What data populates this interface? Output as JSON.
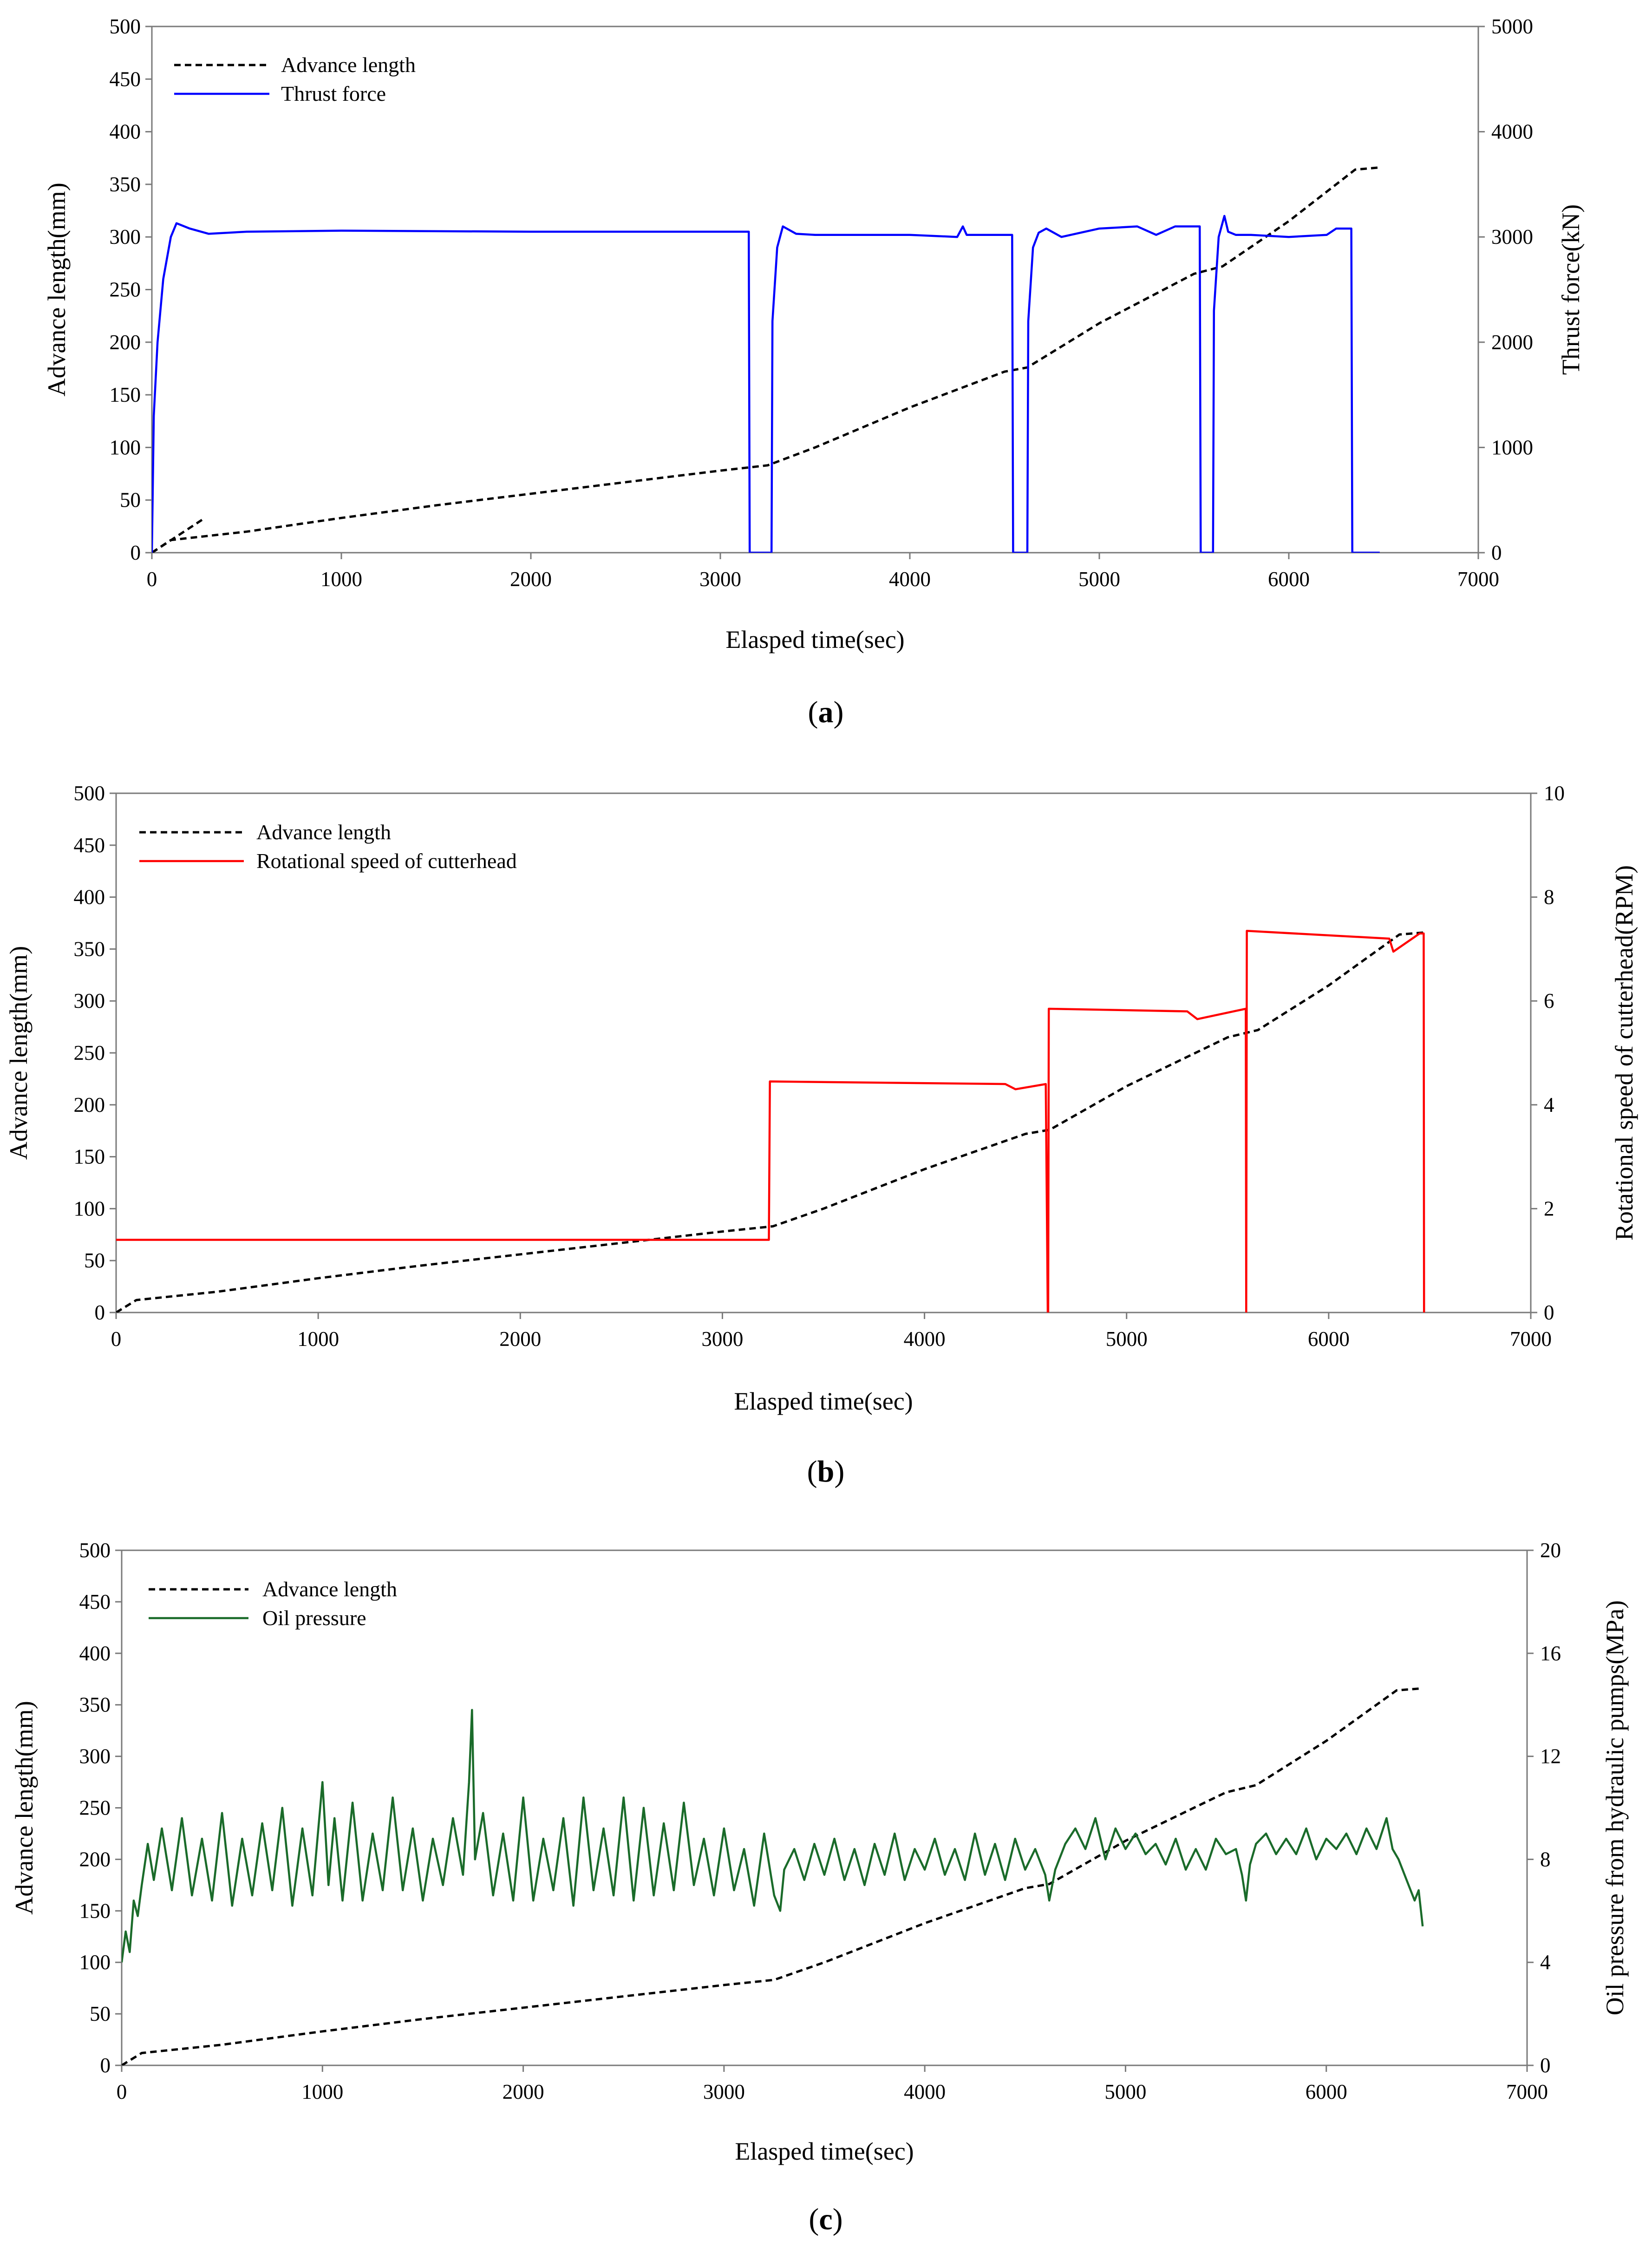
{
  "chart_data": [
    {
      "type": "line",
      "caption_letter": "a",
      "xlabel": "Elasped time(sec)",
      "ylabel_left": "Advance length(mm)",
      "ylabel_right": "Thrust force(kN)",
      "xlim": [
        0,
        7000
      ],
      "ylim_left": [
        0,
        500
      ],
      "ylim_right": [
        0,
        5000
      ],
      "xticks": [
        "0",
        "1000",
        "2000",
        "3000",
        "4000",
        "5000",
        "6000",
        "7000"
      ],
      "yticks_left": [
        "0",
        "50",
        "100",
        "150",
        "200",
        "250",
        "300",
        "350",
        "400",
        "450",
        "500"
      ],
      "yticks_right": [
        "0",
        "1000",
        "2000",
        "3000",
        "4000",
        "5000"
      ],
      "series": [
        {
          "name": "Advance length",
          "axis": "left",
          "color": "#000000",
          "dashed": true,
          "x": [
            0,
            100,
            300,
            500,
            1000,
            1500,
            2000,
            2500,
            3000,
            3250,
            3500,
            4000,
            4500,
            4620,
            5000,
            5500,
            5650,
            6000,
            6350,
            6480
          ],
          "y": [
            0,
            12,
            16,
            20,
            33,
            45,
            56,
            67,
            78,
            83,
            100,
            138,
            172,
            176,
            218,
            265,
            272,
            315,
            364,
            366
          ]
        },
        {
          "name": "Advance length (segment)",
          "axis": "left",
          "color": "#000000",
          "dashed": true,
          "legend": false,
          "x": [
            0,
            280
          ],
          "y": [
            0,
            33
          ]
        },
        {
          "name": "Thrust force",
          "axis": "right",
          "color": "#0000ff",
          "dashed": false,
          "x": [
            0,
            10,
            30,
            60,
            100,
            130,
            200,
            300,
            500,
            1000,
            2000,
            3000,
            3150,
            3155,
            3160,
            3270,
            3275,
            3300,
            3330,
            3350,
            3400,
            3500,
            4000,
            4250,
            4280,
            4300,
            4500,
            4540,
            4545,
            4620,
            4625,
            4650,
            4680,
            4720,
            4800,
            5000,
            5200,
            5300,
            5400,
            5500,
            5530,
            5535,
            5600,
            5605,
            5630,
            5660,
            5680,
            5720,
            5800,
            6000,
            6200,
            6250,
            6300,
            6330,
            6335,
            6480
          ],
          "y": [
            0,
            1300,
            2000,
            2600,
            3000,
            3130,
            3080,
            3030,
            3050,
            3060,
            3050,
            3050,
            3050,
            0,
            0,
            0,
            2200,
            2900,
            3100,
            3080,
            3030,
            3020,
            3020,
            3000,
            3100,
            3020,
            3020,
            3020,
            0,
            0,
            2200,
            2900,
            3040,
            3080,
            3000,
            3080,
            3100,
            3020,
            3100,
            3100,
            3100,
            0,
            0,
            2300,
            3000,
            3200,
            3050,
            3020,
            3020,
            3000,
            3020,
            3080,
            3080,
            3080,
            0,
            0
          ]
        }
      ]
    },
    {
      "type": "line",
      "caption_letter": "b",
      "xlabel": "Elasped time(sec)",
      "ylabel_left": "Advance length(mm)",
      "ylabel_right": "Rotational speed of cutterhead(RPM)",
      "xlim": [
        0,
        7000
      ],
      "ylim_left": [
        0,
        500
      ],
      "ylim_right": [
        0,
        10
      ],
      "xticks": [
        "0",
        "1000",
        "2000",
        "3000",
        "4000",
        "5000",
        "6000",
        "7000"
      ],
      "yticks_left": [
        "0",
        "50",
        "100",
        "150",
        "200",
        "250",
        "300",
        "350",
        "400",
        "450",
        "500"
      ],
      "yticks_right": [
        "0",
        "2",
        "4",
        "6",
        "8",
        "10"
      ],
      "series": [
        {
          "name": "Advance length",
          "axis": "left",
          "color": "#000000",
          "dashed": true,
          "x": [
            0,
            100,
            300,
            500,
            1000,
            1500,
            2000,
            2500,
            3000,
            3250,
            3500,
            4000,
            4500,
            4620,
            5000,
            5500,
            5650,
            6000,
            6350,
            6480
          ],
          "y": [
            0,
            12,
            16,
            20,
            33,
            45,
            56,
            67,
            78,
            83,
            100,
            138,
            172,
            176,
            218,
            265,
            272,
            315,
            364,
            366
          ]
        },
        {
          "name": "Rotational speed of cutterhead",
          "axis": "right",
          "color": "#ff0000",
          "dashed": false,
          "x": [
            0,
            3230,
            3235,
            4400,
            4450,
            4600,
            4610,
            4612,
            4615,
            5300,
            5350,
            5590,
            5592,
            5595,
            6300,
            6320,
            6450,
            6470,
            6472
          ],
          "y": [
            1.4,
            1.4,
            4.45,
            4.4,
            4.3,
            4.4,
            0,
            0,
            5.85,
            5.8,
            5.65,
            5.85,
            0,
            7.35,
            7.2,
            6.95,
            7.3,
            7.3,
            0
          ]
        }
      ]
    },
    {
      "type": "line",
      "caption_letter": "c",
      "xlabel": "Elasped time(sec)",
      "ylabel_left": "Advance length(mm)",
      "ylabel_right": "Oil pressure from hydraulic pumps(MPa)",
      "xlim": [
        0,
        7000
      ],
      "ylim_left": [
        0,
        500
      ],
      "ylim_right": [
        0,
        20
      ],
      "xticks": [
        "0",
        "1000",
        "2000",
        "3000",
        "4000",
        "5000",
        "6000",
        "7000"
      ],
      "yticks_left": [
        "0",
        "50",
        "100",
        "150",
        "200",
        "250",
        "300",
        "350",
        "400",
        "450",
        "500"
      ],
      "yticks_right": [
        "0",
        "4",
        "8",
        "12",
        "16",
        "20"
      ],
      "series": [
        {
          "name": "Advance length",
          "axis": "left",
          "color": "#000000",
          "dashed": true,
          "x": [
            0,
            100,
            300,
            500,
            1000,
            1500,
            2000,
            2500,
            3000,
            3250,
            3500,
            4000,
            4500,
            4620,
            5000,
            5500,
            5650,
            6000,
            6350,
            6480
          ],
          "y": [
            0,
            12,
            16,
            20,
            33,
            45,
            56,
            67,
            78,
            83,
            100,
            138,
            172,
            176,
            218,
            265,
            272,
            315,
            364,
            366
          ]
        },
        {
          "name": "Oil pressure",
          "axis": "right",
          "color": "#1a6b2a",
          "dashed": false,
          "x": [
            0,
            20,
            40,
            60,
            80,
            100,
            130,
            160,
            200,
            250,
            300,
            350,
            400,
            450,
            500,
            550,
            600,
            650,
            700,
            750,
            800,
            850,
            900,
            950,
            1000,
            1030,
            1060,
            1100,
            1150,
            1200,
            1250,
            1300,
            1350,
            1400,
            1450,
            1500,
            1550,
            1600,
            1650,
            1700,
            1730,
            1745,
            1760,
            1800,
            1850,
            1900,
            1950,
            2000,
            2050,
            2100,
            2150,
            2200,
            2250,
            2300,
            2350,
            2400,
            2450,
            2500,
            2550,
            2600,
            2650,
            2700,
            2750,
            2800,
            2850,
            2900,
            2950,
            3000,
            3050,
            3100,
            3150,
            3200,
            3250,
            3280,
            3300,
            3350,
            3400,
            3450,
            3500,
            3550,
            3600,
            3650,
            3700,
            3750,
            3800,
            3850,
            3900,
            3950,
            4000,
            4050,
            4100,
            4150,
            4200,
            4250,
            4300,
            4350,
            4400,
            4450,
            4500,
            4550,
            4600,
            4620,
            4650,
            4700,
            4750,
            4800,
            4850,
            4900,
            4950,
            5000,
            5050,
            5100,
            5150,
            5200,
            5250,
            5300,
            5350,
            5400,
            5450,
            5500,
            5550,
            5580,
            5600,
            5620,
            5650,
            5700,
            5750,
            5800,
            5850,
            5900,
            5950,
            6000,
            6050,
            6100,
            6150,
            6200,
            6250,
            6300,
            6330,
            6360,
            6400,
            6440,
            6460,
            6480
          ],
          "y": [
            4.0,
            5.2,
            4.4,
            6.4,
            5.8,
            7.0,
            8.6,
            7.2,
            9.2,
            6.8,
            9.6,
            6.6,
            8.8,
            6.4,
            9.8,
            6.2,
            8.8,
            6.6,
            9.4,
            6.8,
            10.0,
            6.2,
            9.2,
            6.6,
            11.0,
            7.0,
            9.6,
            6.4,
            10.2,
            6.4,
            9.0,
            6.8,
            10.4,
            6.8,
            9.2,
            6.4,
            8.8,
            7.0,
            9.6,
            7.4,
            11.0,
            13.8,
            8.0,
            9.8,
            6.6,
            9.0,
            6.4,
            10.4,
            6.4,
            8.8,
            6.8,
            9.6,
            6.2,
            10.4,
            6.8,
            9.2,
            6.6,
            10.4,
            6.4,
            10.0,
            6.6,
            9.4,
            6.8,
            10.2,
            7.0,
            8.8,
            6.6,
            9.2,
            6.8,
            8.4,
            6.2,
            9.0,
            6.6,
            6.0,
            7.6,
            8.4,
            7.2,
            8.6,
            7.4,
            8.8,
            7.2,
            8.4,
            7.0,
            8.6,
            7.4,
            9.0,
            7.2,
            8.4,
            7.6,
            8.8,
            7.4,
            8.4,
            7.2,
            9.0,
            7.4,
            8.6,
            7.2,
            8.8,
            7.6,
            8.4,
            7.4,
            6.4,
            7.6,
            8.6,
            9.2,
            8.4,
            9.6,
            8.0,
            9.2,
            8.4,
            9.0,
            8.2,
            8.6,
            7.8,
            8.8,
            7.6,
            8.4,
            7.6,
            8.8,
            8.2,
            8.4,
            7.4,
            6.4,
            7.8,
            8.6,
            9.0,
            8.2,
            8.8,
            8.2,
            9.2,
            8.0,
            8.8,
            8.4,
            9.0,
            8.2,
            9.2,
            8.4,
            9.6,
            8.4,
            8.0,
            7.2,
            6.4,
            6.8,
            5.4
          ]
        }
      ]
    }
  ]
}
